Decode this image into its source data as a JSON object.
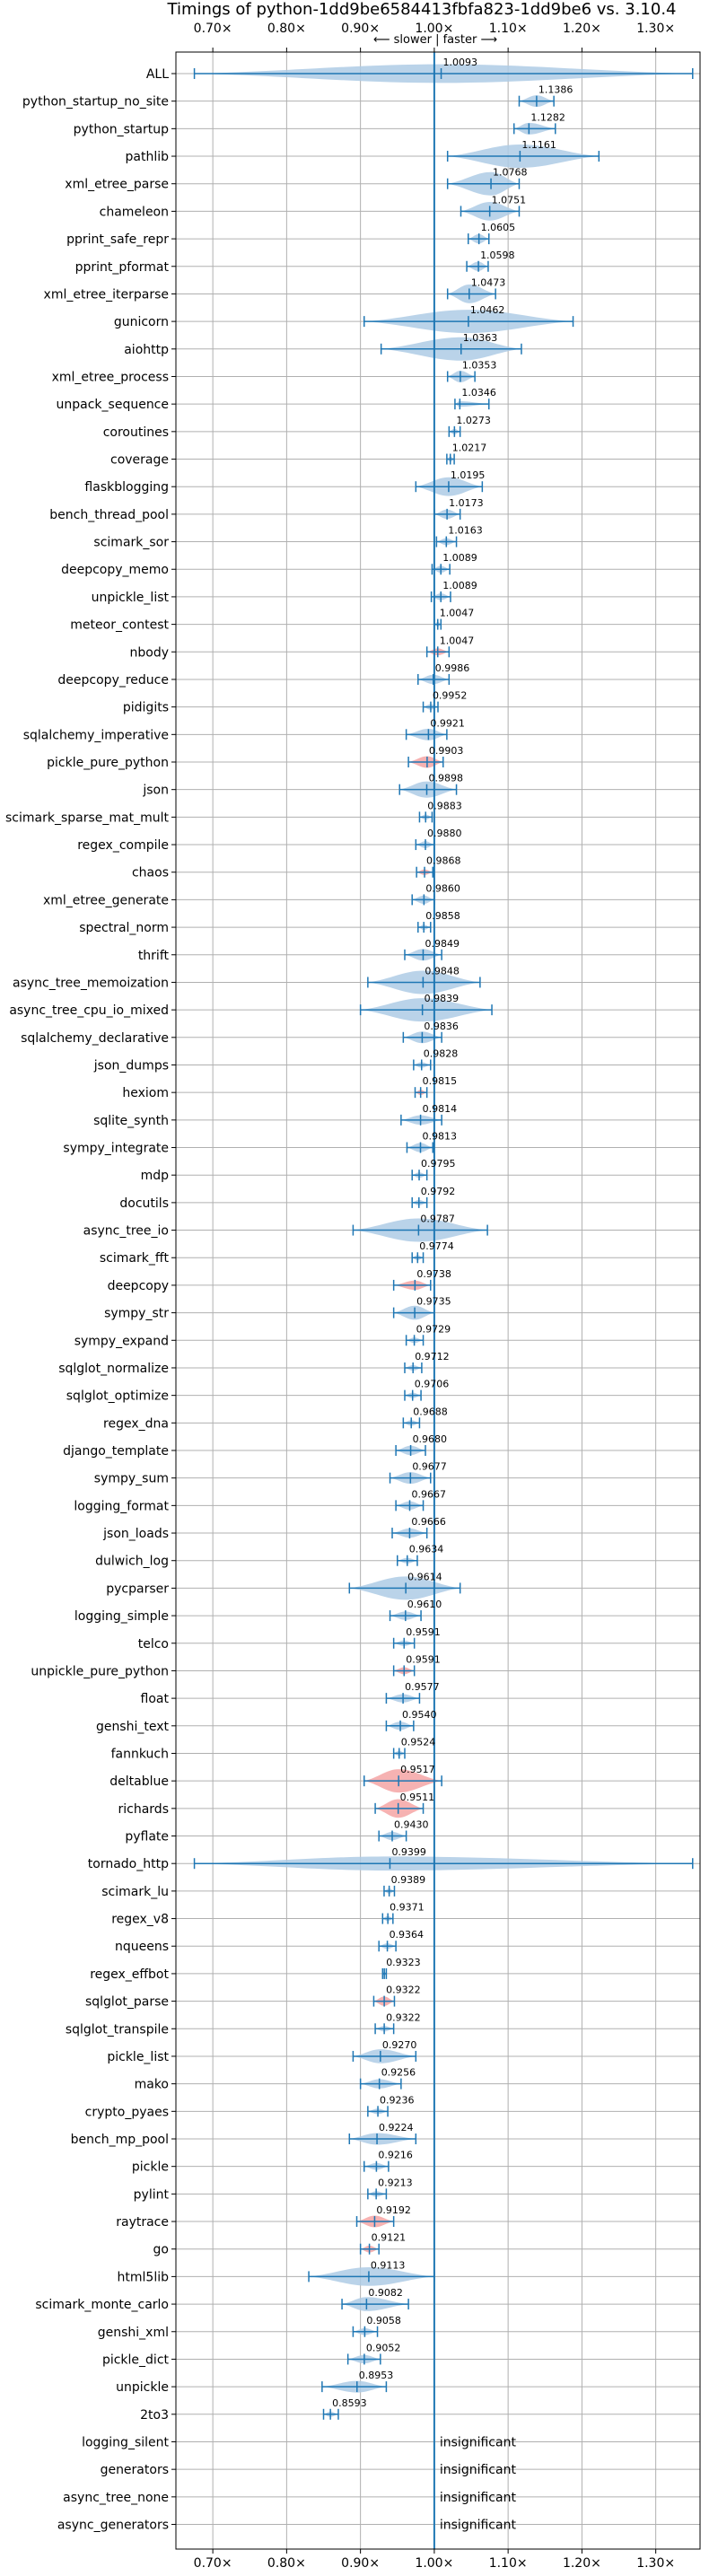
{
  "colors": {
    "accent": "#1f77b4",
    "faster_fill": "#aecbe5",
    "slower_fill": "#f4a5a5",
    "grid": "#b0b0b0",
    "axis": "#000000"
  },
  "chart_data": {
    "type": "violin",
    "title": "Timings of python-1dd9be6584413fbfa823-1dd9be6 vs. 3.10.4",
    "direction_label": "⟵ slower | faster ⟶",
    "xlim": [
      0.65,
      1.36
    ],
    "xticks": [
      0.7,
      0.8,
      0.9,
      1.0,
      1.1,
      1.2,
      1.3
    ],
    "xtick_labels": [
      "0.70×",
      "0.80×",
      "0.90×",
      "1.00×",
      "1.10×",
      "1.20×",
      "1.30×"
    ],
    "grid": true,
    "reference_line": 1.0,
    "benchmarks": [
      {
        "name": "ALL",
        "value": 1.0093,
        "label": "1.0093",
        "min": 0.675,
        "max": 1.35,
        "width": 0.04,
        "slower": false
      },
      {
        "name": "python_startup_no_site",
        "value": 1.1386,
        "label": "1.1386",
        "min": 1.115,
        "max": 1.162,
        "width": 0.025,
        "slower": false
      },
      {
        "name": "python_startup",
        "value": 1.1282,
        "label": "1.1282",
        "min": 1.108,
        "max": 1.164,
        "width": 0.025,
        "slower": false
      },
      {
        "name": "pathlib",
        "value": 1.1161,
        "label": "1.1161",
        "min": 1.018,
        "max": 1.223,
        "width": 0.08,
        "slower": false
      },
      {
        "name": "xml_etree_parse",
        "value": 1.0768,
        "label": "1.0768",
        "min": 1.018,
        "max": 1.115,
        "width": 0.05,
        "slower": false
      },
      {
        "name": "chameleon",
        "value": 1.0751,
        "label": "1.0751",
        "min": 1.036,
        "max": 1.115,
        "width": 0.04,
        "slower": false
      },
      {
        "name": "pprint_safe_repr",
        "value": 1.0605,
        "label": "1.0605",
        "min": 1.046,
        "max": 1.074,
        "width": 0.02,
        "slower": false
      },
      {
        "name": "pprint_pformat",
        "value": 1.0598,
        "label": "1.0598",
        "min": 1.044,
        "max": 1.073,
        "width": 0.02,
        "slower": false
      },
      {
        "name": "xml_etree_iterparse",
        "value": 1.0473,
        "label": "1.0473",
        "min": 1.018,
        "max": 1.083,
        "width": 0.04,
        "slower": false
      },
      {
        "name": "gunicorn",
        "value": 1.0462,
        "label": "1.0462",
        "min": 0.905,
        "max": 1.188,
        "width": 0.06,
        "slower": false
      },
      {
        "name": "aiohttp",
        "value": 1.0363,
        "label": "1.0363",
        "min": 0.928,
        "max": 1.118,
        "width": 0.05,
        "slower": false
      },
      {
        "name": "xml_etree_process",
        "value": 1.0353,
        "label": "1.0353",
        "min": 1.018,
        "max": 1.055,
        "width": 0.025,
        "slower": false
      },
      {
        "name": "unpack_sequence",
        "value": 1.0346,
        "label": "1.0346",
        "min": 1.028,
        "max": 1.074,
        "width": 0.012,
        "slower": false
      },
      {
        "name": "coroutines",
        "value": 1.0273,
        "label": "1.0273",
        "min": 1.02,
        "max": 1.035,
        "width": 0.012,
        "slower": false
      },
      {
        "name": "coverage",
        "value": 1.0217,
        "label": "1.0217",
        "min": 1.017,
        "max": 1.027,
        "width": 0.008,
        "slower": false
      },
      {
        "name": "flaskblogging",
        "value": 1.0195,
        "label": "1.0195",
        "min": 0.975,
        "max": 1.065,
        "width": 0.04,
        "slower": false
      },
      {
        "name": "bench_thread_pool",
        "value": 1.0173,
        "label": "1.0173",
        "min": 1.0,
        "max": 1.035,
        "width": 0.02,
        "slower": false
      },
      {
        "name": "scimark_sor",
        "value": 1.0163,
        "label": "1.0163",
        "min": 1.003,
        "max": 1.03,
        "width": 0.015,
        "slower": false
      },
      {
        "name": "deepcopy_memo",
        "value": 1.0089,
        "label": "1.0089",
        "min": 0.997,
        "max": 1.021,
        "width": 0.015,
        "slower": false
      },
      {
        "name": "unpickle_list",
        "value": 1.0089,
        "label": "1.0089",
        "min": 0.996,
        "max": 1.022,
        "width": 0.015,
        "slower": false
      },
      {
        "name": "meteor_contest",
        "value": 1.0047,
        "label": "1.0047",
        "min": 1.0,
        "max": 1.009,
        "width": 0.006,
        "slower": false
      },
      {
        "name": "nbody",
        "value": 1.0047,
        "label": "1.0047",
        "min": 0.99,
        "max": 1.02,
        "width": 0.015,
        "slower": true
      },
      {
        "name": "deepcopy_reduce",
        "value": 0.9986,
        "label": "0.9986",
        "min": 0.978,
        "max": 1.02,
        "width": 0.02,
        "slower": false
      },
      {
        "name": "pidigits",
        "value": 0.9952,
        "label": "0.9952",
        "min": 0.985,
        "max": 1.005,
        "width": 0.012,
        "slower": false
      },
      {
        "name": "sqlalchemy_imperative",
        "value": 0.9921,
        "label": "0.9921",
        "min": 0.962,
        "max": 1.017,
        "width": 0.025,
        "slower": false
      },
      {
        "name": "pickle_pure_python",
        "value": 0.9903,
        "label": "0.9903",
        "min": 0.965,
        "max": 1.012,
        "width": 0.025,
        "slower": true
      },
      {
        "name": "json",
        "value": 0.9898,
        "label": "0.9898",
        "min": 0.953,
        "max": 1.03,
        "width": 0.035,
        "slower": false
      },
      {
        "name": "scimark_sparse_mat_mult",
        "value": 0.9883,
        "label": "0.9883",
        "min": 0.98,
        "max": 0.997,
        "width": 0.01,
        "slower": false
      },
      {
        "name": "regex_compile",
        "value": 0.988,
        "label": "0.9880",
        "min": 0.975,
        "max": 1.0,
        "width": 0.015,
        "slower": false
      },
      {
        "name": "chaos",
        "value": 0.9868,
        "label": "0.9868",
        "min": 0.976,
        "max": 0.998,
        "width": 0.012,
        "slower": true
      },
      {
        "name": "xml_etree_generate",
        "value": 0.986,
        "label": "0.9860",
        "min": 0.97,
        "max": 1.0,
        "width": 0.018,
        "slower": false
      },
      {
        "name": "spectral_norm",
        "value": 0.9858,
        "label": "0.9858",
        "min": 0.978,
        "max": 0.995,
        "width": 0.01,
        "slower": false
      },
      {
        "name": "thrift",
        "value": 0.9849,
        "label": "0.9849",
        "min": 0.96,
        "max": 1.01,
        "width": 0.025,
        "slower": false
      },
      {
        "name": "async_tree_memoization",
        "value": 0.9848,
        "label": "0.9848",
        "min": 0.91,
        "max": 1.062,
        "width": 0.06,
        "slower": false
      },
      {
        "name": "async_tree_cpu_io_mixed",
        "value": 0.9839,
        "label": "0.9839",
        "min": 0.9,
        "max": 1.078,
        "width": 0.065,
        "slower": false
      },
      {
        "name": "sqlalchemy_declarative",
        "value": 0.9836,
        "label": "0.9836",
        "min": 0.958,
        "max": 1.01,
        "width": 0.025,
        "slower": false
      },
      {
        "name": "json_dumps",
        "value": 0.9828,
        "label": "0.9828",
        "min": 0.972,
        "max": 0.995,
        "width": 0.012,
        "slower": false
      },
      {
        "name": "hexiom",
        "value": 0.9815,
        "label": "0.9815",
        "min": 0.974,
        "max": 0.99,
        "width": 0.01,
        "slower": true
      },
      {
        "name": "sqlite_synth",
        "value": 0.9814,
        "label": "0.9814",
        "min": 0.955,
        "max": 1.01,
        "width": 0.02,
        "slower": false
      },
      {
        "name": "sympy_integrate",
        "value": 0.9813,
        "label": "0.9813",
        "min": 0.963,
        "max": 0.998,
        "width": 0.02,
        "slower": false
      },
      {
        "name": "mdp",
        "value": 0.9795,
        "label": "0.9795",
        "min": 0.97,
        "max": 0.99,
        "width": 0.012,
        "slower": false
      },
      {
        "name": "docutils",
        "value": 0.9792,
        "label": "0.9792",
        "min": 0.97,
        "max": 0.99,
        "width": 0.012,
        "slower": false
      },
      {
        "name": "async_tree_io",
        "value": 0.9787,
        "label": "0.9787",
        "min": 0.89,
        "max": 1.072,
        "width": 0.065,
        "slower": false
      },
      {
        "name": "scimark_fft",
        "value": 0.9774,
        "label": "0.9774",
        "min": 0.97,
        "max": 0.985,
        "width": 0.01,
        "slower": false
      },
      {
        "name": "deepcopy",
        "value": 0.9738,
        "label": "0.9738",
        "min": 0.945,
        "max": 0.995,
        "width": 0.02,
        "slower": true
      },
      {
        "name": "sympy_str",
        "value": 0.9735,
        "label": "0.9735",
        "min": 0.945,
        "max": 1.0,
        "width": 0.03,
        "slower": false
      },
      {
        "name": "sympy_expand",
        "value": 0.9729,
        "label": "0.9729",
        "min": 0.962,
        "max": 0.985,
        "width": 0.012,
        "slower": false
      },
      {
        "name": "sqlglot_normalize",
        "value": 0.9712,
        "label": "0.9712",
        "min": 0.96,
        "max": 0.983,
        "width": 0.012,
        "slower": false
      },
      {
        "name": "sqlglot_optimize",
        "value": 0.9706,
        "label": "0.9706",
        "min": 0.96,
        "max": 0.982,
        "width": 0.012,
        "slower": false
      },
      {
        "name": "regex_dna",
        "value": 0.9688,
        "label": "0.9688",
        "min": 0.958,
        "max": 0.98,
        "width": 0.012,
        "slower": false
      },
      {
        "name": "django_template",
        "value": 0.968,
        "label": "0.9680",
        "min": 0.948,
        "max": 0.988,
        "width": 0.02,
        "slower": false
      },
      {
        "name": "sympy_sum",
        "value": 0.9677,
        "label": "0.9677",
        "min": 0.94,
        "max": 0.995,
        "width": 0.025,
        "slower": false
      },
      {
        "name": "logging_format",
        "value": 0.9667,
        "label": "0.9667",
        "min": 0.948,
        "max": 0.985,
        "width": 0.018,
        "slower": false
      },
      {
        "name": "json_loads",
        "value": 0.9666,
        "label": "0.9666",
        "min": 0.943,
        "max": 0.99,
        "width": 0.02,
        "slower": false
      },
      {
        "name": "dulwich_log",
        "value": 0.9634,
        "label": "0.9634",
        "min": 0.95,
        "max": 0.977,
        "width": 0.012,
        "slower": false
      },
      {
        "name": "pycparser",
        "value": 0.9614,
        "label": "0.9614",
        "min": 0.885,
        "max": 1.035,
        "width": 0.05,
        "slower": false
      },
      {
        "name": "logging_simple",
        "value": 0.961,
        "label": "0.9610",
        "min": 0.94,
        "max": 0.982,
        "width": 0.018,
        "slower": false
      },
      {
        "name": "telco",
        "value": 0.9591,
        "label": "0.9591",
        "min": 0.945,
        "max": 0.973,
        "width": 0.012,
        "slower": false
      },
      {
        "name": "unpickle_pure_python",
        "value": 0.9591,
        "label": "0.9591",
        "min": 0.945,
        "max": 0.973,
        "width": 0.015,
        "slower": true
      },
      {
        "name": "float",
        "value": 0.9577,
        "label": "0.9577",
        "min": 0.935,
        "max": 0.98,
        "width": 0.018,
        "slower": false
      },
      {
        "name": "genshi_text",
        "value": 0.954,
        "label": "0.9540",
        "min": 0.935,
        "max": 0.972,
        "width": 0.018,
        "slower": false
      },
      {
        "name": "fannkuch",
        "value": 0.9524,
        "label": "0.9524",
        "min": 0.945,
        "max": 0.96,
        "width": 0.01,
        "slower": false
      },
      {
        "name": "deltablue",
        "value": 0.9517,
        "label": "0.9517",
        "min": 0.905,
        "max": 1.01,
        "width": 0.06,
        "slower": true
      },
      {
        "name": "richards",
        "value": 0.9511,
        "label": "0.9511",
        "min": 0.92,
        "max": 0.985,
        "width": 0.04,
        "slower": true
      },
      {
        "name": "pyflate",
        "value": 0.943,
        "label": "0.9430",
        "min": 0.925,
        "max": 0.962,
        "width": 0.018,
        "slower": false
      },
      {
        "name": "tornado_http",
        "value": 0.9399,
        "label": "0.9399",
        "min": 0.675,
        "max": 1.35,
        "width": 0.03,
        "slower": false
      },
      {
        "name": "scimark_lu",
        "value": 0.9389,
        "label": "0.9389",
        "min": 0.932,
        "max": 0.946,
        "width": 0.01,
        "slower": false
      },
      {
        "name": "regex_v8",
        "value": 0.9371,
        "label": "0.9371",
        "min": 0.93,
        "max": 0.944,
        "width": 0.01,
        "slower": false
      },
      {
        "name": "nqueens",
        "value": 0.9364,
        "label": "0.9364",
        "min": 0.925,
        "max": 0.948,
        "width": 0.012,
        "slower": false
      },
      {
        "name": "regex_effbot",
        "value": 0.9323,
        "label": "0.9323",
        "min": 0.93,
        "max": 0.935,
        "width": 0.004,
        "slower": false
      },
      {
        "name": "sqlglot_parse",
        "value": 0.9322,
        "label": "0.9322",
        "min": 0.918,
        "max": 0.946,
        "width": 0.02,
        "slower": true
      },
      {
        "name": "sqlglot_transpile",
        "value": 0.9322,
        "label": "0.9322",
        "min": 0.92,
        "max": 0.945,
        "width": 0.012,
        "slower": false
      },
      {
        "name": "pickle_list",
        "value": 0.927,
        "label": "0.9270",
        "min": 0.89,
        "max": 0.975,
        "width": 0.03,
        "slower": false
      },
      {
        "name": "mako",
        "value": 0.9256,
        "label": "0.9256",
        "min": 0.9,
        "max": 0.955,
        "width": 0.02,
        "slower": false
      },
      {
        "name": "crypto_pyaes",
        "value": 0.9236,
        "label": "0.9236",
        "min": 0.91,
        "max": 0.937,
        "width": 0.012,
        "slower": false
      },
      {
        "name": "bench_mp_pool",
        "value": 0.9224,
        "label": "0.9224",
        "min": 0.885,
        "max": 0.975,
        "width": 0.025,
        "slower": false
      },
      {
        "name": "pickle",
        "value": 0.9216,
        "label": "0.9216",
        "min": 0.905,
        "max": 0.938,
        "width": 0.015,
        "slower": false
      },
      {
        "name": "pylint",
        "value": 0.9213,
        "label": "0.9213",
        "min": 0.91,
        "max": 0.935,
        "width": 0.012,
        "slower": false
      },
      {
        "name": "raytrace",
        "value": 0.9192,
        "label": "0.9192",
        "min": 0.895,
        "max": 0.945,
        "width": 0.025,
        "slower": true
      },
      {
        "name": "go",
        "value": 0.9121,
        "label": "0.9121",
        "min": 0.9,
        "max": 0.925,
        "width": 0.015,
        "slower": true
      },
      {
        "name": "html5lib",
        "value": 0.9113,
        "label": "0.9113",
        "min": 0.83,
        "max": 1.0,
        "width": 0.04,
        "slower": false
      },
      {
        "name": "scimark_monte_carlo",
        "value": 0.9082,
        "label": "0.9082",
        "min": 0.875,
        "max": 0.965,
        "width": 0.03,
        "slower": false
      },
      {
        "name": "genshi_xml",
        "value": 0.9058,
        "label": "0.9058",
        "min": 0.89,
        "max": 0.923,
        "width": 0.015,
        "slower": false
      },
      {
        "name": "pickle_dict",
        "value": 0.9052,
        "label": "0.9052",
        "min": 0.883,
        "max": 0.927,
        "width": 0.018,
        "slower": false
      },
      {
        "name": "unpickle",
        "value": 0.8953,
        "label": "0.8953",
        "min": 0.848,
        "max": 0.935,
        "width": 0.025,
        "slower": false
      },
      {
        "name": "2to3",
        "value": 0.8593,
        "label": "0.8593",
        "min": 0.85,
        "max": 0.87,
        "width": 0.01,
        "slower": false
      },
      {
        "name": "logging_silent",
        "value": null,
        "label": "insignificant"
      },
      {
        "name": "generators",
        "value": null,
        "label": "insignificant"
      },
      {
        "name": "async_tree_none",
        "value": null,
        "label": "insignificant"
      },
      {
        "name": "async_generators",
        "value": null,
        "label": "insignificant"
      }
    ]
  }
}
